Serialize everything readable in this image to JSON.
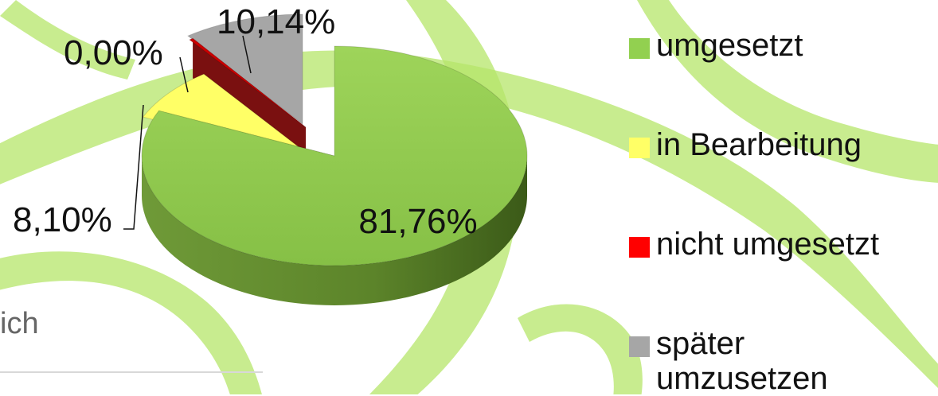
{
  "chart_data": {
    "type": "pie",
    "style": "3d-exploded",
    "slices": [
      {
        "label": "umgesetzt",
        "value": 81.76,
        "display": "81,76%",
        "color": "#92d050"
      },
      {
        "label": "in Bearbeitung",
        "value": 8.1,
        "display": "8,10%",
        "color": "#ffff66"
      },
      {
        "label": "nicht umgesetzt",
        "value": 0.0,
        "display": "0,00%",
        "color": "#cc0000"
      },
      {
        "label": "später umzusetzen",
        "value": 10.14,
        "display": "10,14%",
        "color": "#a6a6a6"
      }
    ],
    "legend_position": "right"
  },
  "legend": {
    "items": [
      {
        "label": "umgesetzt",
        "color": "#92d050"
      },
      {
        "label": "in Bearbeitung",
        "color": "#ffff66"
      },
      {
        "label": "nicht umgesetzt",
        "color": "#ff0000"
      },
      {
        "label": "später umzusetzen",
        "color": "#a6a6a6"
      }
    ]
  },
  "background": {
    "fragment_text": "ich",
    "swirl_color": "#b5e56a"
  }
}
